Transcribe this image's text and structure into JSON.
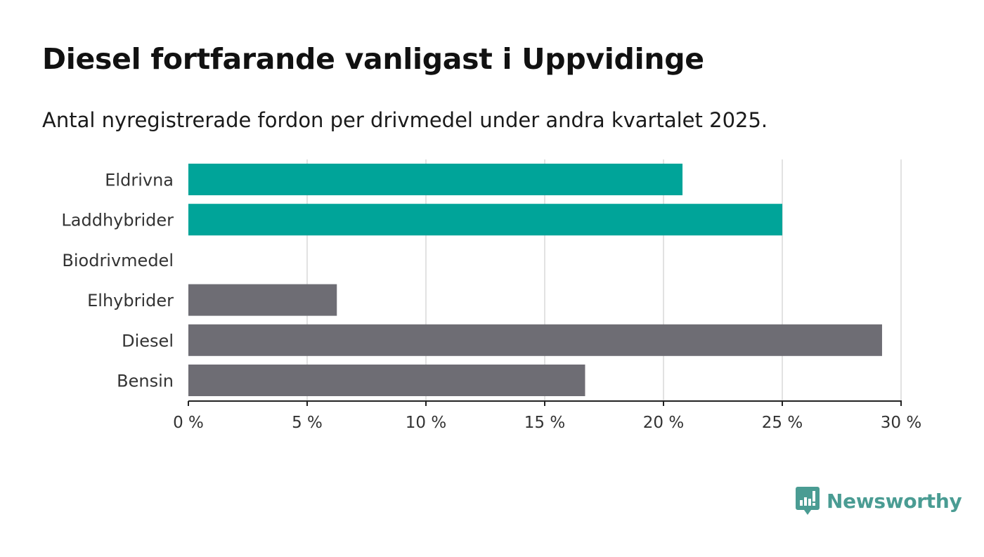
{
  "title": "Diesel fortfarande vanligast i Uppvidinge",
  "subtitle": "Antal nyregistrerade fordon per drivmedel under andra kvartalet 2025.",
  "brand": {
    "name": "Newsworthy",
    "color": "#4a9c93"
  },
  "colors": {
    "highlight": "#00a499",
    "default": "#6e6d74",
    "grid": "#d9d9d9",
    "axis": "#222222",
    "label": "#333333"
  },
  "chart_data": {
    "type": "bar",
    "orientation": "horizontal",
    "categories": [
      "Eldrivna",
      "Laddhybrider",
      "Biodrivmedel",
      "Elhybrider",
      "Diesel",
      "Bensin"
    ],
    "values": [
      20.8,
      25.0,
      0,
      6.25,
      29.2,
      16.7
    ],
    "highlighted": [
      true,
      true,
      true,
      false,
      false,
      false
    ],
    "x_ticks": [
      0,
      5,
      10,
      15,
      20,
      25,
      30
    ],
    "x_tick_labels": [
      "0 %",
      "5 %",
      "10 %",
      "15 %",
      "20 %",
      "25 %",
      "30 %"
    ],
    "xlim": [
      0,
      30
    ],
    "unit": "%",
    "grid": true,
    "xlabel": "",
    "ylabel": ""
  }
}
